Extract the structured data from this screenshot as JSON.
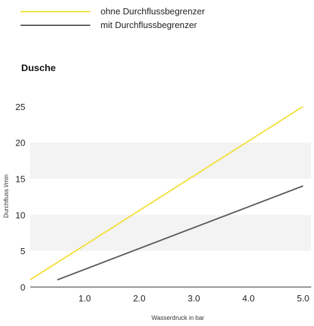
{
  "chart_data": {
    "type": "line",
    "title": "Dusche",
    "xlabel": "Wasserdruck in bar",
    "ylabel": "Durchfluss l/min",
    "xlim": [
      0,
      5.15
    ],
    "ylim": [
      0,
      26.5
    ],
    "x_ticks": [
      "1.0",
      "2.0",
      "3.0",
      "4.0",
      "5.0"
    ],
    "y_ticks": [
      "0",
      "5",
      "10",
      "15",
      "20",
      "25"
    ],
    "legend_position": "top-left",
    "grid": "alternating-bands",
    "series": [
      {
        "name": "ohne Durchflussbegrenzer",
        "color": "#f2e03c",
        "x": [
          0,
          5.0
        ],
        "y": [
          1,
          25
        ]
      },
      {
        "name": "mit Durchflussbegrenzer",
        "color": "#5a5a5a",
        "x": [
          0.5,
          5.0
        ],
        "y": [
          1,
          14
        ]
      }
    ]
  }
}
